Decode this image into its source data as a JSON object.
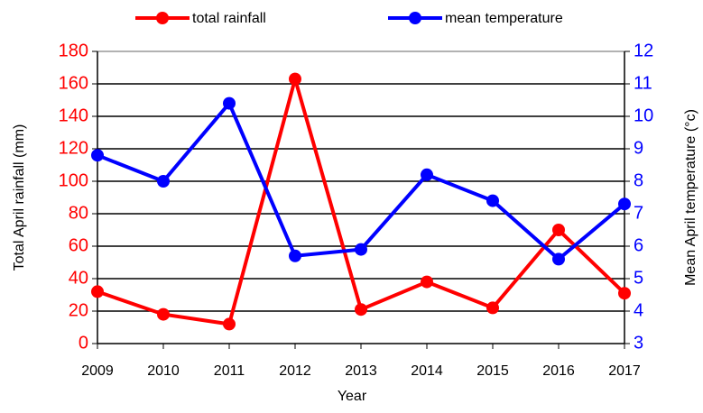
{
  "chart_data": {
    "type": "line",
    "x_label": "Year",
    "y_label": "Total April rainfall (mm)",
    "y2_label": "Mean April temperature (°c)",
    "categories": [
      "2009",
      "2010",
      "2011",
      "2012",
      "2013",
      "2014",
      "2015",
      "2016",
      "2017"
    ],
    "series": [
      {
        "name": "total rainfall",
        "color": "#ff0000",
        "values": [
          32,
          18,
          12,
          163,
          21,
          38,
          22,
          70,
          31
        ]
      },
      {
        "name": "mean temperature",
        "color": "#0000ff",
        "axis": "y2",
        "values": [
          8.8,
          8.0,
          10.4,
          5.7,
          5.9,
          8.2,
          7.4,
          5.6,
          7.3
        ]
      }
    ],
    "ylim": [
      0,
      180
    ],
    "yticks": [
      0,
      20,
      40,
      60,
      80,
      100,
      120,
      140,
      160,
      180
    ],
    "y2lim": [
      3,
      12
    ],
    "y2ticks": [
      3,
      4,
      5,
      6,
      7,
      8,
      9,
      10,
      11,
      12
    ],
    "y_color": "#ff0000",
    "y2_color": "#0000ff",
    "grid": true,
    "legend": "top"
  }
}
